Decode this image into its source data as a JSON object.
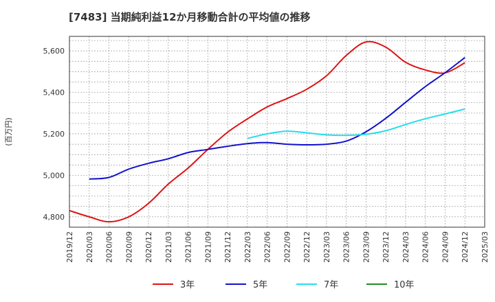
{
  "chart_data": {
    "type": "line",
    "title": "[7483]  当期純利益12か月移動合計の平均値の推移",
    "ylabel": "(百万円)",
    "xlabel": "",
    "ylim": [
      4750,
      5670
    ],
    "yticks": [
      4800,
      5000,
      5200,
      5400,
      5600
    ],
    "ytick_labels": [
      "4,800",
      "5,000",
      "5,200",
      "5,400",
      "5,600"
    ],
    "xticks": [
      "2019/12",
      "2020/03",
      "2020/06",
      "2020/09",
      "2020/12",
      "2021/03",
      "2021/06",
      "2021/09",
      "2021/12",
      "2022/03",
      "2022/06",
      "2022/09",
      "2022/12",
      "2023/03",
      "2023/06",
      "2023/09",
      "2023/12",
      "2024/03",
      "2024/06",
      "2024/09",
      "2024/12",
      "2025/03"
    ],
    "grid": true,
    "legend_position": "bottom",
    "series": [
      {
        "name": "3年",
        "color": "#dd1111",
        "points": [
          [
            "2019/12",
            4830
          ],
          [
            "2020/03",
            4800
          ],
          [
            "2020/06",
            4776
          ],
          [
            "2020/09",
            4800
          ],
          [
            "2020/12",
            4865
          ],
          [
            "2021/03",
            4958
          ],
          [
            "2021/06",
            5035
          ],
          [
            "2021/09",
            5125
          ],
          [
            "2021/12",
            5208
          ],
          [
            "2022/03",
            5272
          ],
          [
            "2022/06",
            5330
          ],
          [
            "2022/09",
            5370
          ],
          [
            "2022/12",
            5415
          ],
          [
            "2023/03",
            5480
          ],
          [
            "2023/06",
            5578
          ],
          [
            "2023/09",
            5643
          ],
          [
            "2023/12",
            5618
          ],
          [
            "2024/03",
            5545
          ],
          [
            "2024/06",
            5508
          ],
          [
            "2024/09",
            5494
          ],
          [
            "2024/12",
            5543
          ]
        ]
      },
      {
        "name": "5年",
        "color": "#1111cc",
        "points": [
          [
            "2020/03",
            4982
          ],
          [
            "2020/06",
            4990
          ],
          [
            "2020/09",
            5030
          ],
          [
            "2020/12",
            5058
          ],
          [
            "2021/03",
            5080
          ],
          [
            "2021/06",
            5110
          ],
          [
            "2021/09",
            5125
          ],
          [
            "2021/12",
            5140
          ],
          [
            "2022/03",
            5153
          ],
          [
            "2022/06",
            5158
          ],
          [
            "2022/09",
            5150
          ],
          [
            "2022/12",
            5147
          ],
          [
            "2023/03",
            5150
          ],
          [
            "2023/06",
            5165
          ],
          [
            "2023/09",
            5210
          ],
          [
            "2023/12",
            5275
          ],
          [
            "2024/03",
            5352
          ],
          [
            "2024/06",
            5428
          ],
          [
            "2024/09",
            5495
          ],
          [
            "2024/12",
            5568
          ]
        ]
      },
      {
        "name": "7年",
        "color": "#22ddee",
        "points": [
          [
            "2022/03",
            5178
          ],
          [
            "2022/06",
            5200
          ],
          [
            "2022/09",
            5213
          ],
          [
            "2022/12",
            5205
          ],
          [
            "2023/03",
            5195
          ],
          [
            "2023/06",
            5193
          ],
          [
            "2023/09",
            5198
          ],
          [
            "2023/12",
            5215
          ],
          [
            "2024/03",
            5245
          ],
          [
            "2024/06",
            5273
          ],
          [
            "2024/09",
            5296
          ],
          [
            "2024/12",
            5320
          ]
        ]
      },
      {
        "name": "10年",
        "color": "#228b22",
        "points": []
      }
    ]
  }
}
